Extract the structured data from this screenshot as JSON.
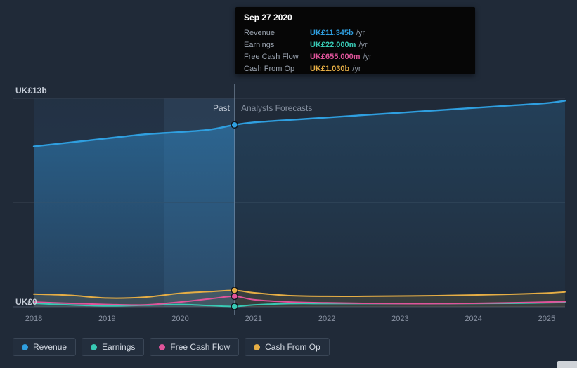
{
  "labels": {
    "past": "Past",
    "forecast": "Analysts Forecasts",
    "y_top": "UK£13b",
    "y_zero": "UK£0"
  },
  "tooltip": {
    "date": "Sep 27 2020",
    "rows": [
      {
        "label": "Revenue",
        "value": "UK£11.345b",
        "unit": "/yr",
        "color": "#2f9fe0"
      },
      {
        "label": "Earnings",
        "value": "UK£22.000m",
        "unit": "/yr",
        "color": "#38c9b4"
      },
      {
        "label": "Free Cash Flow",
        "value": "UK£655.000m",
        "unit": "/yr",
        "color": "#e0549b"
      },
      {
        "label": "Cash From Op",
        "value": "UK£1.030b",
        "unit": "/yr",
        "color": "#e6ae45"
      }
    ]
  },
  "legend": [
    {
      "label": "Revenue",
      "color": "#2f9fe0"
    },
    {
      "label": "Earnings",
      "color": "#38c9b4"
    },
    {
      "label": "Free Cash Flow",
      "color": "#e0549b"
    },
    {
      "label": "Cash From Op",
      "color": "#e6ae45"
    }
  ],
  "chart_data": {
    "type": "line",
    "title": "Past performance and analysts forecasts (UK£, billions per year)",
    "x": [
      2018,
      2018.5,
      2019,
      2019.5,
      2020,
      2020.4,
      2020.74,
      2021,
      2021.5,
      2022,
      2022.5,
      2023,
      2023.5,
      2024,
      2024.5,
      2025,
      2025.25
    ],
    "x_ticks": [
      "2018",
      "2019",
      "2020",
      "2021",
      "2022",
      "2023",
      "2024",
      "2025"
    ],
    "ylim": [
      0,
      13
    ],
    "divider_x": 2020.74,
    "highlight_band": [
      2019.78,
      2020.74
    ],
    "grid": true,
    "legend_position": "bottom",
    "series": [
      {
        "name": "Revenue",
        "color": "#2f9fe0",
        "values": [
          10.0,
          10.25,
          10.5,
          10.75,
          10.9,
          11.05,
          11.345,
          11.5,
          11.65,
          11.8,
          11.95,
          12.1,
          12.25,
          12.4,
          12.55,
          12.7,
          12.85
        ]
      },
      {
        "name": "Earnings",
        "color": "#38c9b4",
        "values": [
          0.22,
          0.12,
          0.06,
          0.1,
          0.15,
          0.08,
          0.022,
          0.12,
          0.2,
          0.2,
          0.2,
          0.2,
          0.2,
          0.21,
          0.22,
          0.25,
          0.27
        ]
      },
      {
        "name": "Free Cash Flow",
        "color": "#e0549b",
        "values": [
          0.3,
          0.22,
          0.15,
          0.12,
          0.3,
          0.5,
          0.655,
          0.45,
          0.3,
          0.25,
          0.22,
          0.2,
          0.2,
          0.22,
          0.25,
          0.3,
          0.33
        ]
      },
      {
        "name": "Cash From Op",
        "color": "#e6ae45",
        "values": [
          0.8,
          0.72,
          0.55,
          0.6,
          0.85,
          0.95,
          1.03,
          0.88,
          0.7,
          0.66,
          0.66,
          0.68,
          0.7,
          0.74,
          0.79,
          0.86,
          0.93
        ]
      }
    ],
    "marker": {
      "x": 2020.74,
      "date": "Sep 27 2020",
      "values": {
        "revenue": 11.345,
        "earnings": 0.022,
        "free_cash_flow": 0.655,
        "cash_from_op": 1.03
      }
    }
  }
}
